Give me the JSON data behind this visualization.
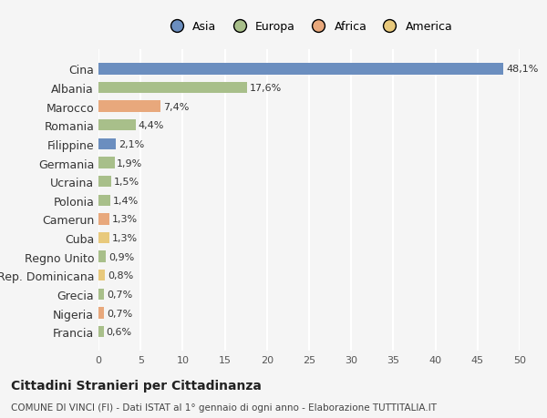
{
  "categories": [
    "Cina",
    "Albania",
    "Marocco",
    "Romania",
    "Filippine",
    "Germania",
    "Ucraina",
    "Polonia",
    "Camerun",
    "Cuba",
    "Regno Unito",
    "Rep. Dominicana",
    "Grecia",
    "Nigeria",
    "Francia"
  ],
  "values": [
    48.1,
    17.6,
    7.4,
    4.4,
    2.1,
    1.9,
    1.5,
    1.4,
    1.3,
    1.3,
    0.9,
    0.8,
    0.7,
    0.7,
    0.6
  ],
  "labels": [
    "48,1%",
    "17,6%",
    "7,4%",
    "4,4%",
    "2,1%",
    "1,9%",
    "1,5%",
    "1,4%",
    "1,3%",
    "1,3%",
    "0,9%",
    "0,8%",
    "0,7%",
    "0,7%",
    "0,6%"
  ],
  "colors": [
    "#6b8ebf",
    "#a8bf8a",
    "#e8a87c",
    "#a8bf8a",
    "#6b8ebf",
    "#a8bf8a",
    "#a8bf8a",
    "#a8bf8a",
    "#e8a87c",
    "#e8c97c",
    "#a8bf8a",
    "#e8c97c",
    "#a8bf8a",
    "#e8a87c",
    "#a8bf8a"
  ],
  "continent_names": [
    "Asia",
    "Europa",
    "Africa",
    "America"
  ],
  "continent_colors": [
    "#6b8ebf",
    "#a8bf8a",
    "#e8a87c",
    "#e8c97c"
  ],
  "xlim": [
    0,
    50
  ],
  "xticks": [
    0,
    5,
    10,
    15,
    20,
    25,
    30,
    35,
    40,
    45,
    50
  ],
  "title": "Cittadini Stranieri per Cittadinanza",
  "subtitle": "COMUNE DI VINCI (FI) - Dati ISTAT al 1° gennaio di ogni anno - Elaborazione TUTTITALIA.IT",
  "bg_color": "#f5f5f5",
  "grid_color": "#ffffff",
  "bar_height": 0.6
}
